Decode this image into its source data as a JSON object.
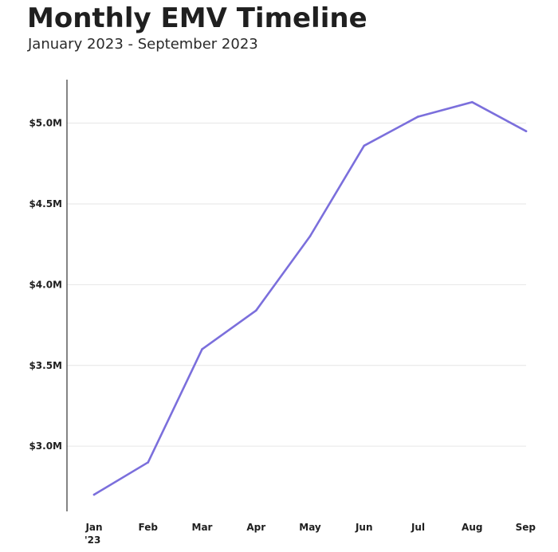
{
  "title": "Monthly EMV Timeline",
  "subtitle": "January 2023 - September 2023",
  "colors": {
    "line": "#7b6fdc",
    "grid": "#e6e6e6",
    "axis": "#333333"
  },
  "chart_data": {
    "type": "line",
    "title": "Monthly EMV Timeline",
    "subtitle": "January 2023 - September 2023",
    "xlabel": "",
    "ylabel": "",
    "categories": [
      "Jan",
      "Feb",
      "Mar",
      "Apr",
      "May",
      "Jun",
      "Jul",
      "Aug",
      "Sep"
    ],
    "first_category_sublabel": "'23",
    "y_ticks": [
      3000000,
      3500000,
      4000000,
      4500000,
      5000000
    ],
    "y_tick_labels": [
      "$3.0M",
      "$3.5M",
      "$4.0M",
      "$4.5M",
      "$5.0M"
    ],
    "ylim": [
      2700000,
      5200000
    ],
    "grid": true,
    "legend": "none",
    "series": [
      {
        "values": [
          2700000,
          2900000,
          3600000,
          3840000,
          4300000,
          4860000,
          5040000,
          5130000,
          4950000
        ]
      }
    ]
  }
}
